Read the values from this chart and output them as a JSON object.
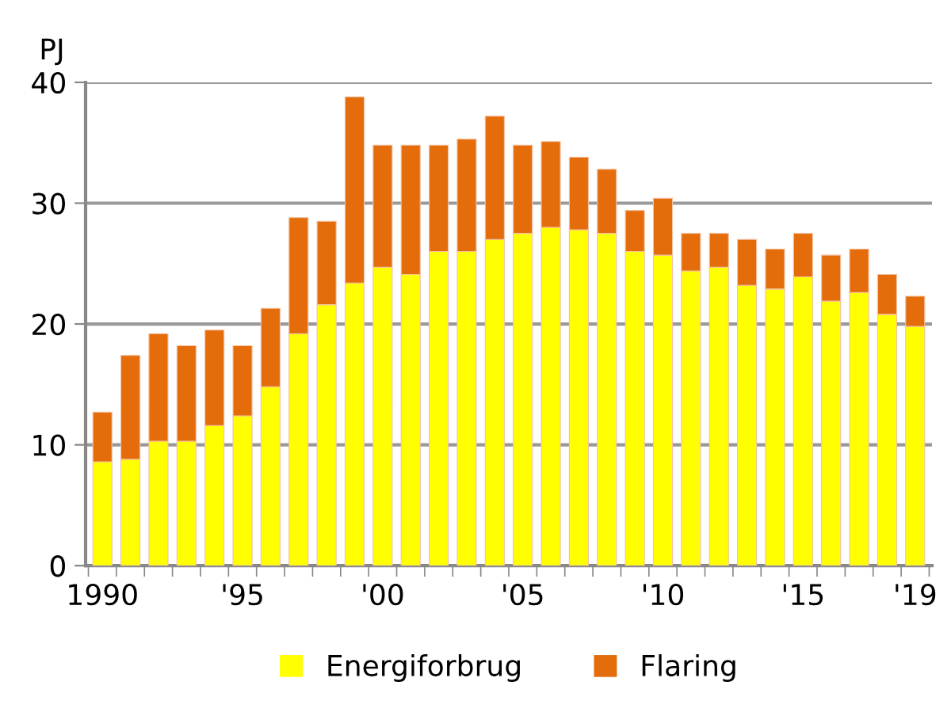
{
  "chart_data": {
    "type": "bar",
    "stacked": true,
    "ylabel": "PJ",
    "categories": [
      "1990",
      null,
      null,
      null,
      null,
      "'95",
      null,
      null,
      null,
      null,
      "'00",
      null,
      null,
      null,
      null,
      "'05",
      null,
      null,
      null,
      null,
      "'10",
      null,
      null,
      null,
      null,
      "'15",
      null,
      null,
      null,
      "'19"
    ],
    "series": [
      {
        "name": "Energiforbrug",
        "color": "#ffff00",
        "values": [
          8.6,
          8.8,
          10.3,
          10.3,
          11.6,
          12.4,
          14.8,
          19.2,
          21.6,
          23.4,
          24.7,
          24.1,
          26.0,
          26.0,
          27.0,
          27.5,
          28.0,
          27.8,
          27.5,
          26.0,
          25.7,
          24.4,
          24.7,
          23.2,
          22.9,
          23.9,
          21.9,
          22.6,
          20.8,
          19.8
        ]
      },
      {
        "name": "Flaring",
        "color": "#e46c0a",
        "values": [
          4.1,
          8.6,
          8.9,
          7.9,
          7.9,
          5.8,
          6.5,
          9.6,
          6.9,
          15.4,
          10.1,
          10.7,
          8.8,
          9.3,
          10.2,
          7.3,
          7.1,
          6.0,
          5.3,
          3.4,
          4.7,
          3.1,
          2.8,
          3.8,
          3.3,
          3.6,
          3.8,
          3.6,
          3.3,
          2.5
        ]
      }
    ],
    "ylim": [
      0,
      40
    ],
    "yticks": [
      0,
      10,
      20,
      30,
      40
    ],
    "grid": "y",
    "legend": "bottom"
  }
}
